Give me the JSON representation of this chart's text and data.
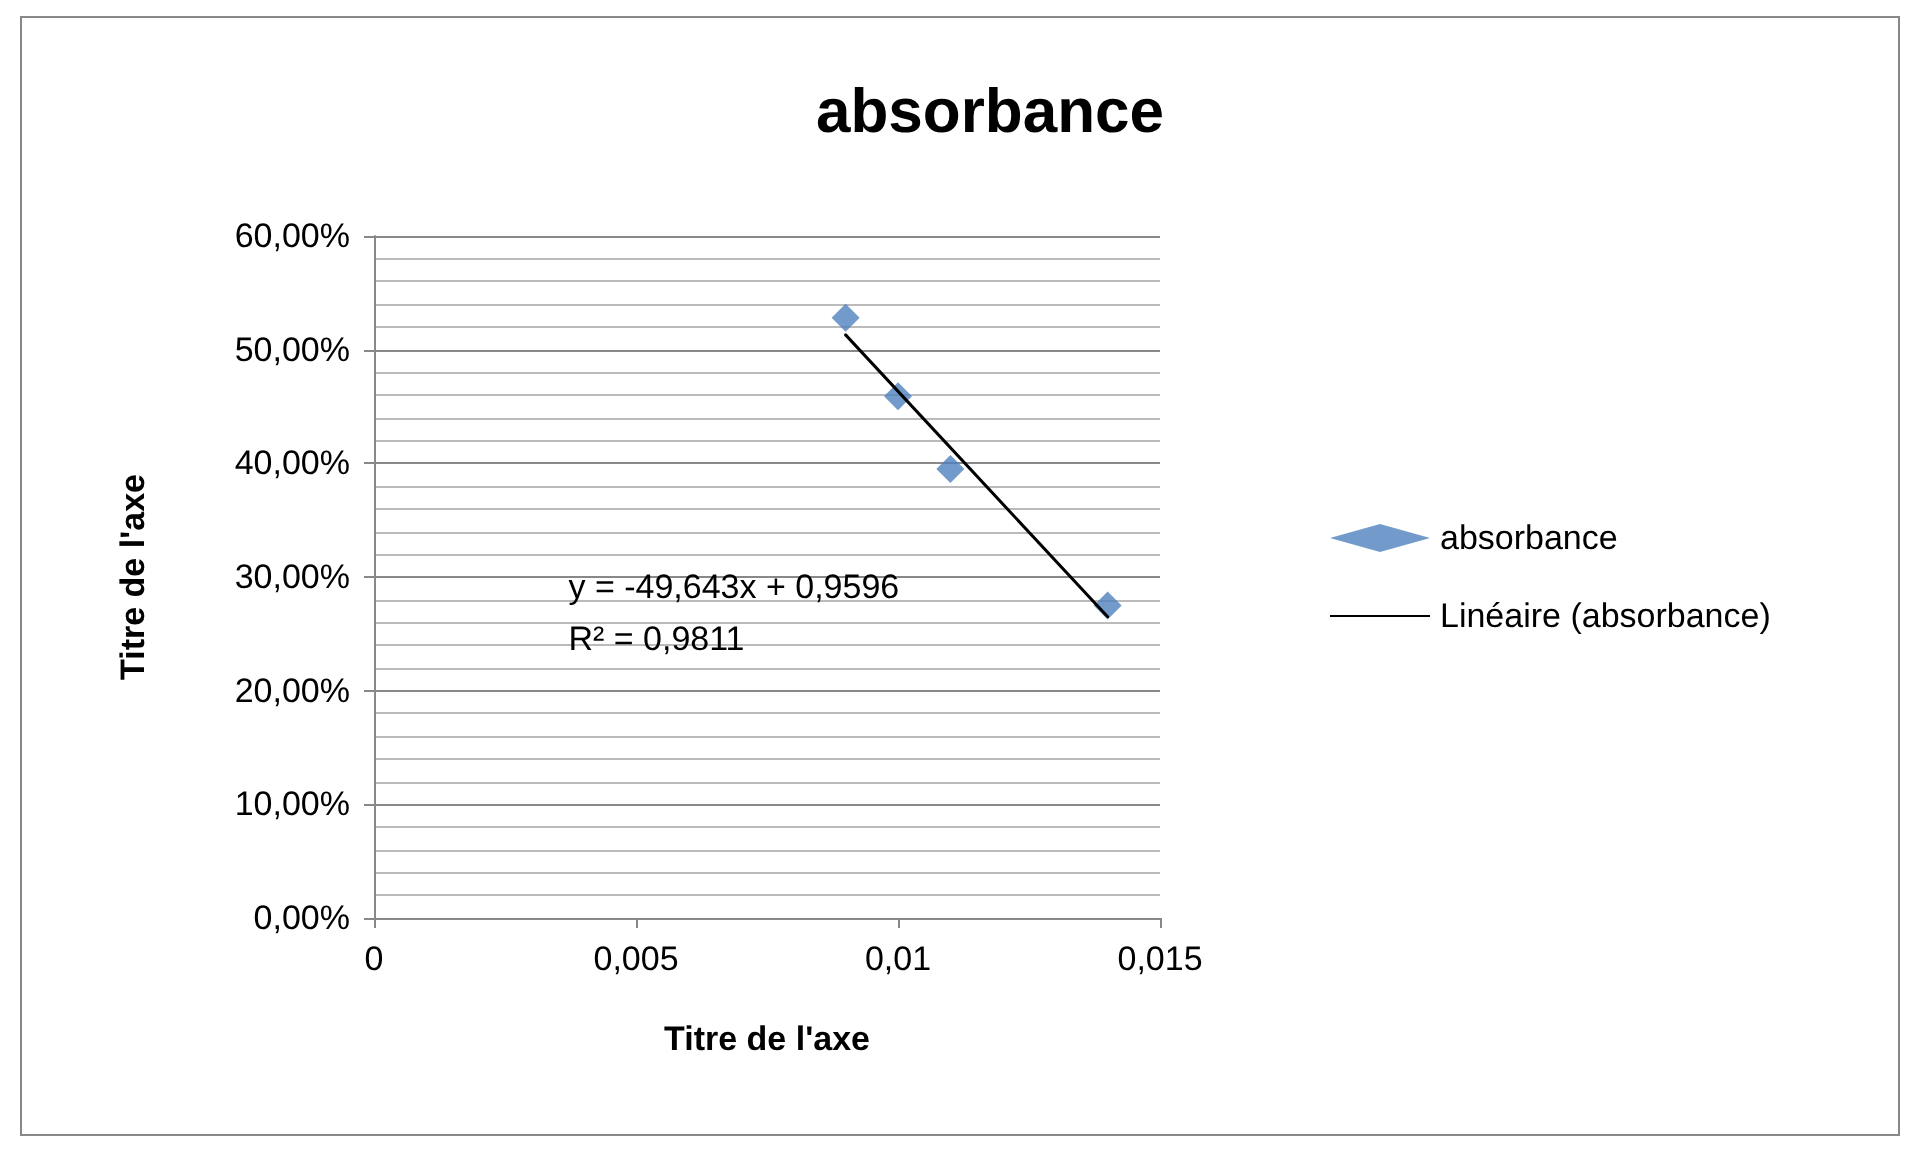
{
  "chart_data": {
    "type": "scatter",
    "title": "absorbance",
    "xlabel": "Titre de l'axe",
    "ylabel": "Titre de l'axe",
    "series": [
      {
        "name": "absorbance",
        "type": "scatter",
        "color": "#4f81bd",
        "marker": "diamond",
        "x": [
          0.009,
          0.01,
          0.011,
          0.014
        ],
        "values": [
          52.8,
          45.9,
          39.5,
          27.5
        ]
      },
      {
        "name": "Linéaire (absorbance)",
        "type": "line",
        "color": "#000000",
        "marker": "none",
        "x": [
          0.009,
          0.014
        ],
        "values": [
          51.3,
          26.5
        ]
      }
    ],
    "annotations": [
      "y = -49,643x + 0,9596",
      "R² = 0,9811"
    ],
    "xlim": [
      0,
      0.015
    ],
    "xticks": [
      {
        "value": 0,
        "label": "0"
      },
      {
        "value": 0.005,
        "label": "0,005"
      },
      {
        "value": 0.01,
        "label": "0,01"
      },
      {
        "value": 0.015,
        "label": "0,015"
      }
    ],
    "ylim": [
      0,
      60
    ],
    "yticks": [
      {
        "value": 0,
        "label": "0,00%"
      },
      {
        "value": 10,
        "label": "10,00%"
      },
      {
        "value": 20,
        "label": "20,00%"
      },
      {
        "value": 30,
        "label": "30,00%"
      },
      {
        "value": 40,
        "label": "40,00%"
      },
      {
        "value": 50,
        "label": "50,00%"
      },
      {
        "value": 60,
        "label": "60,00%"
      }
    ],
    "grid": "y",
    "legend": "right"
  }
}
